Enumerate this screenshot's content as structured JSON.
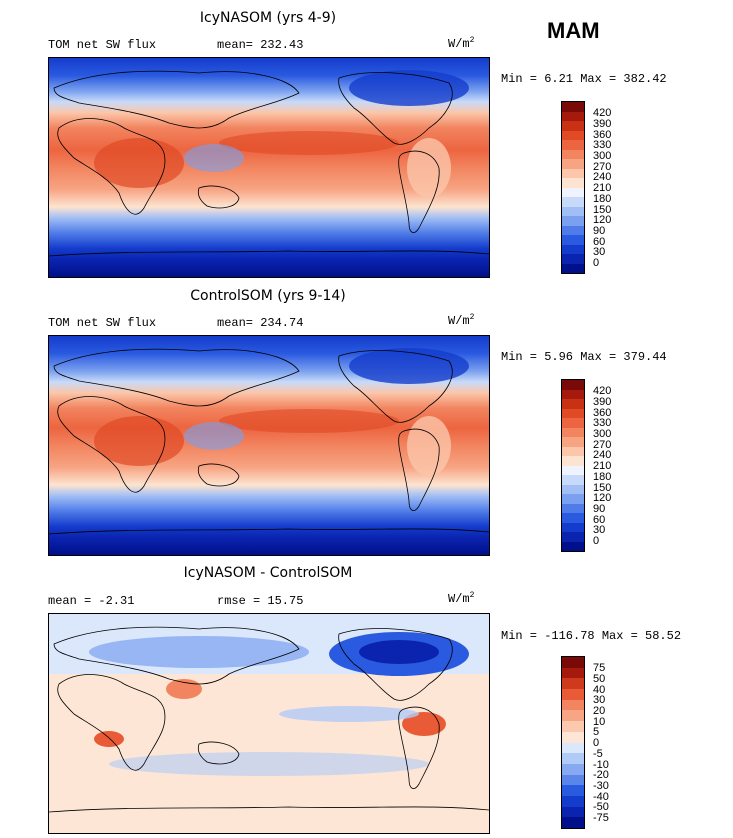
{
  "season_label": "MAM",
  "unit_base": "W/m",
  "unit_sup": "2",
  "colors": {
    "flux_scale": [
      "#000f8a",
      "#0a24b0",
      "#143ccc",
      "#2a5ae0",
      "#4f7ce8",
      "#7aa0ef",
      "#a2bff5",
      "#c8daf9",
      "#eef3fd",
      "#fde4d0",
      "#fbc6aa",
      "#f7a483",
      "#f2845f",
      "#ec6540",
      "#e04a25",
      "#c93114",
      "#a51a0c",
      "#7a0a07"
    ],
    "diff_scale": [
      "#000f8a",
      "#0a24b0",
      "#143ccc",
      "#2a5ae0",
      "#5a86ea",
      "#86a9f1",
      "#b1cbf7",
      "#dbe8fb",
      "#fde6d6",
      "#fbc9ae",
      "#f7a585",
      "#f2845f",
      "#e95a37",
      "#cf3a1c",
      "#a51a0c",
      "#7a0a07"
    ]
  },
  "chart_data": [
    {
      "type": "heatmap",
      "title": "IcyNASOM (yrs 4-9)",
      "left_label": "TOM net SW flux",
      "stat_text": "mean= 232.43",
      "range_text": "Min =   6.21 Max = 382.42",
      "mean": 232.43,
      "min": 6.21,
      "max": 382.42,
      "colorbar_ticks": [
        "420",
        "390",
        "360",
        "330",
        "300",
        "270",
        "240",
        "210",
        "180",
        "150",
        "120",
        "90",
        "60",
        "30",
        "0"
      ]
    },
    {
      "type": "heatmap",
      "title": "ControlSOM (yrs 9-14)",
      "left_label": "TOM net SW flux",
      "stat_text": "mean= 234.74",
      "range_text": "Min =   5.96 Max = 379.44",
      "mean": 234.74,
      "min": 5.96,
      "max": 379.44,
      "colorbar_ticks": [
        "420",
        "390",
        "360",
        "330",
        "300",
        "270",
        "240",
        "210",
        "180",
        "150",
        "120",
        "90",
        "60",
        "30",
        "0"
      ]
    },
    {
      "type": "heatmap",
      "title": "IcyNASOM - ControlSOM",
      "left_label": "mean =  -2.31",
      "stat_text": "rmse =  15.75",
      "range_text": "Min = -116.78 Max =  58.52",
      "mean": -2.31,
      "rmse": 15.75,
      "min": -116.78,
      "max": 58.52,
      "colorbar_ticks": [
        "75",
        "50",
        "40",
        "30",
        "20",
        "10",
        "5",
        "0",
        "-5",
        "-10",
        "-20",
        "-30",
        "-40",
        "-50",
        "-75"
      ]
    }
  ]
}
